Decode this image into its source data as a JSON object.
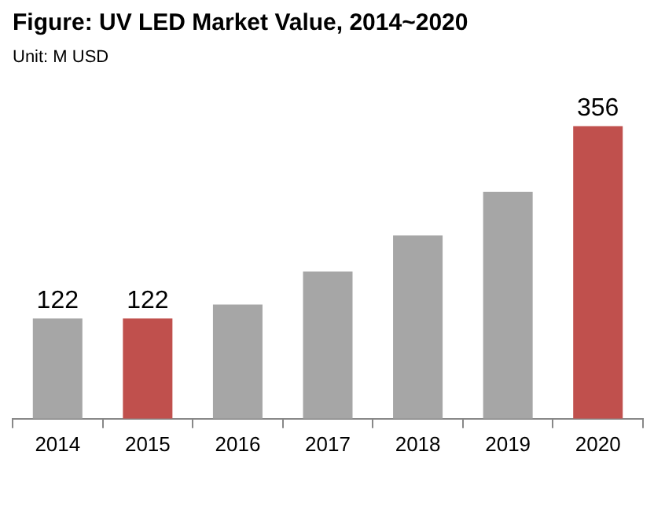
{
  "chart_data": {
    "type": "bar",
    "title": "Figure: UV LED Market Value, 2014~2020",
    "subtitle": "Unit: M USD",
    "categories": [
      "2014",
      "2015",
      "2016",
      "2017",
      "2018",
      "2019",
      "2020"
    ],
    "values": [
      122,
      122,
      139,
      179,
      223,
      276,
      356
    ],
    "colors": [
      "#a6a6a6",
      "#c0504d",
      "#a6a6a6",
      "#a6a6a6",
      "#a6a6a6",
      "#a6a6a6",
      "#c0504d"
    ],
    "value_labels": [
      "122",
      "122",
      null,
      null,
      null,
      null,
      "356"
    ],
    "grid": false,
    "legend": false
  }
}
